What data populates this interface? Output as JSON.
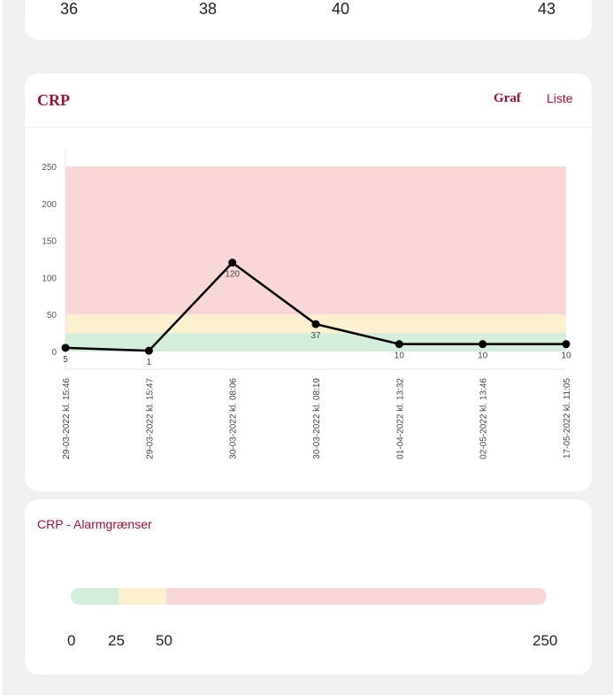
{
  "top_card": {
    "numbers": [
      "36",
      "38",
      "40",
      "43"
    ]
  },
  "crp_card": {
    "title": "CRP",
    "tabs": [
      {
        "label": "Graf",
        "active": true
      },
      {
        "label": "Liste",
        "active": false
      }
    ]
  },
  "chart_data": {
    "type": "line",
    "ylim": [
      0,
      250
    ],
    "yticks": [
      "0",
      "50",
      "100",
      "150",
      "200",
      "250"
    ],
    "categories": [
      "29-03-2022 kl. 15:46",
      "29-03-2022 kl. 15:47",
      "30-03-2022 kl. 08:06",
      "30-03-2022 kl. 08:19",
      "01-04-2022 kl. 13:32",
      "02-05-2022 kl. 13:46",
      "17-05-2022 kl. 11:05"
    ],
    "values": [
      5,
      1,
      120,
      37,
      10,
      10,
      10
    ],
    "data_labels": [
      "5",
      "1",
      "120",
      "37",
      "10",
      "10",
      "10"
    ],
    "bands": [
      {
        "from": 0,
        "to": 25,
        "color": "#d3eedb"
      },
      {
        "from": 25,
        "to": 50,
        "color": "#fdf0cf"
      },
      {
        "from": 50,
        "to": 250,
        "color": "#f9d7d7"
      }
    ],
    "line_color": "#000000"
  },
  "alarm_card": {
    "title": "CRP - Alarmgrænser",
    "min": 0,
    "max": 250,
    "segments": [
      {
        "from": 0,
        "to": 25,
        "color": "#d3eedb"
      },
      {
        "from": 25,
        "to": 50,
        "color": "#fdf0cf"
      },
      {
        "from": 50,
        "to": 250,
        "color": "#f9d7d7"
      }
    ],
    "labels": [
      "0",
      "25",
      "50",
      "250"
    ]
  }
}
